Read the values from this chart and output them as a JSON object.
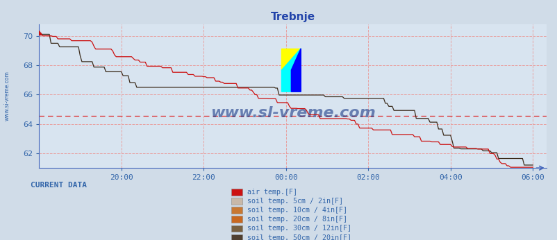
{
  "title": "Trebnje",
  "bg_color": "#d0dce8",
  "plot_bg_color": "#d8e4f0",
  "grid_color": "#e8a0a0",
  "axis_color": "#4466bb",
  "title_color": "#2244aa",
  "text_color": "#3366aa",
  "ylim": [
    61,
    70.8
  ],
  "xlim": [
    0,
    148
  ],
  "yticks": [
    62,
    64,
    66,
    68,
    70
  ],
  "xtick_positions": [
    24,
    48,
    72,
    96,
    120,
    144
  ],
  "xtick_labels": [
    "20:00",
    "22:00",
    "00:00",
    "02:00",
    "04:00",
    "06:00"
  ],
  "hline_y": 64.55,
  "hline_color": "#dd2222",
  "air_temp_color": "#cc1111",
  "soil_dark_color": "#3a2a1a",
  "soil_colors": [
    "#c8b8a8",
    "#c87832",
    "#c86820",
    "#786040",
    "#504030"
  ],
  "legend_labels": [
    "air temp.[F]",
    "soil temp. 5cm / 2in[F]",
    "soil temp. 10cm / 4in[F]",
    "soil temp. 20cm / 8in[F]",
    "soil temp. 30cm / 12in[F]",
    "soil temp. 50cm / 20in[F]"
  ],
  "current_data_text": "CURRENT DATA",
  "watermark": "www.sl-vreme.com",
  "watermark_color": "#1a3a88",
  "left_text": "www.si-vreme.com"
}
